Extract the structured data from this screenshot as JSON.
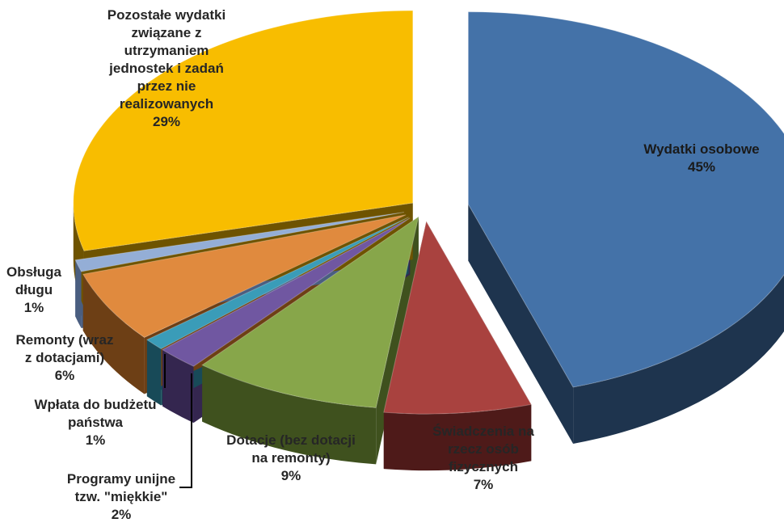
{
  "chart_data": {
    "type": "pie",
    "style": "3d-exploded",
    "title": "",
    "legend": "none",
    "slices": [
      {
        "name": "Wydatki osobowe",
        "lines": [
          "Wydatki osobowe",
          "45%"
        ],
        "value": 45,
        "color": "#4472a8",
        "side": "#1e344e"
      },
      {
        "name": "Świadczenia na rzecz osób fizycznych",
        "lines": [
          "Świadczenia na",
          "rzecz osób",
          "fizycznych",
          "7%"
        ],
        "value": 7,
        "color": "#a9423f",
        "side": "#4e1a19"
      },
      {
        "name": "Dotacje (bez dotacji na remonty)",
        "lines": [
          "Dotacje (bez dotacji",
          "na remonty)",
          "9%"
        ],
        "value": 9,
        "color": "#87a64a",
        "side": "#3f511e"
      },
      {
        "name": "Programy unijne tzw. \"miękkie\"",
        "lines": [
          "Programy unijne",
          "tzw. \"miękkie\"",
          "2%"
        ],
        "value": 2,
        "color": "#7057a1",
        "side": "#34264f"
      },
      {
        "name": "Wpłata do budżetu państwa",
        "lines": [
          "Wpłata do budżetu",
          "państwa",
          "1%"
        ],
        "value": 1,
        "color": "#3a9cb8",
        "side": "#184a58"
      },
      {
        "name": "Remonty (wraz z dotacjami)",
        "lines": [
          "Remonty (wraz",
          "z dotacjami)",
          "6%"
        ],
        "value": 6,
        "color": "#e08a3e",
        "side": "#6d3f15"
      },
      {
        "name": "Obsługa długu",
        "lines": [
          "Obsługa",
          "długu",
          "1%"
        ],
        "value": 1,
        "color": "#94aed6",
        "side": "#4a5e80"
      },
      {
        "name": "Pozostałe wydatki związane z utrzymaniem jednostek i zadań przez nie realizowanych",
        "lines": [
          "Pozostałe wydatki",
          "związane z",
          "utrzymaniem",
          "jednostek i zadań",
          "przez nie",
          "realizowanych",
          "29%"
        ],
        "value": 29,
        "color": "#f8bd00",
        "side": "#6e5300"
      }
    ]
  }
}
